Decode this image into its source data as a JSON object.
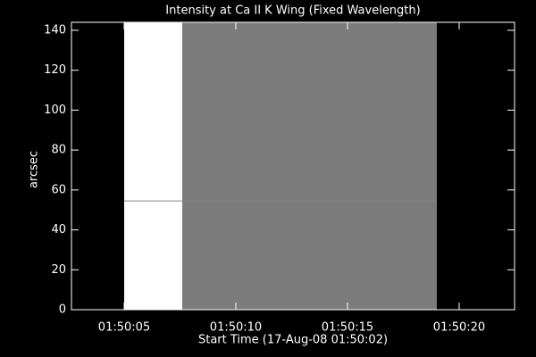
{
  "chart_data": {
    "type": "image",
    "title": "Intensity at Ca II K Wing (Fixed Wavelength)",
    "y_label": "arcsec",
    "x_label": "Start Time (17-Aug-08 01:50:02)",
    "xlim": [
      2.64,
      22.48
    ],
    "xticks": [
      {
        "value": 5,
        "label": "01:50:05"
      },
      {
        "value": 10,
        "label": "01:50:10"
      },
      {
        "value": 15,
        "label": "01:50:15"
      },
      {
        "value": 20,
        "label": "01:50:20"
      }
    ],
    "ylim": [
      0,
      144
    ],
    "yticks": [
      0,
      20,
      40,
      60,
      80,
      100,
      120,
      140
    ],
    "bands": [
      {
        "x": [
          5,
          7.6
        ],
        "color": "#ffffff"
      },
      {
        "x": [
          7.6,
          19
        ],
        "color": "#7b7b7b"
      }
    ],
    "streak_y": 54.5
  }
}
